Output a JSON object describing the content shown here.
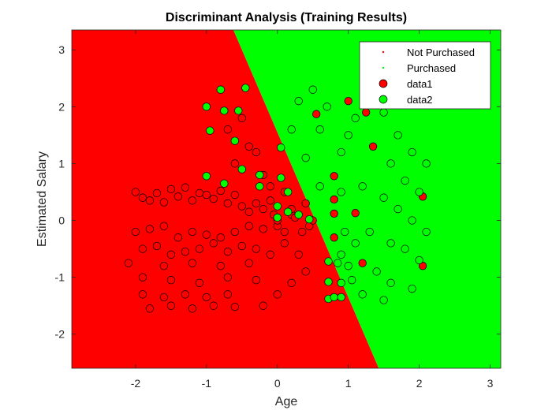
{
  "chart_data": {
    "type": "scatter",
    "title": "Discriminant Analysis (Training Results)",
    "xlabel": "Age",
    "ylabel": "Estimated Salary",
    "xlim": [
      -2.9,
      3.15
    ],
    "ylim": [
      -2.6,
      3.35
    ],
    "xticks": [
      -2,
      -1,
      0,
      1,
      2,
      3
    ],
    "xtick_labels": [
      "-2",
      "-1",
      "0",
      "1",
      "2",
      "3"
    ],
    "yticks": [
      -2,
      -1,
      0,
      1,
      2,
      3
    ],
    "ytick_labels": [
      "-2",
      "-1",
      "0",
      "1",
      "2",
      "3"
    ],
    "grid": false,
    "legend_placement": "top-right",
    "regions": {
      "boundary_top": {
        "x": -0.62,
        "y": 3.35
      },
      "boundary_bottom": {
        "x": 1.43,
        "y": -2.6
      },
      "left_color": "#ff0000",
      "right_color": "#00ff00",
      "left_label": "Not Purchased",
      "right_label": "Purchased"
    },
    "legend": [
      {
        "label": "Not Purchased",
        "marker": "dot",
        "color": "#ff0000"
      },
      {
        "label": "Purchased",
        "marker": "dot",
        "color": "#00ff00"
      },
      {
        "label": "data1",
        "marker": "circle",
        "color": "#ff0000"
      },
      {
        "label": "data2",
        "marker": "circle",
        "color": "#00ff00"
      }
    ],
    "series": [
      {
        "name": "data1",
        "color": "#ff0000",
        "points": [
          [
            -2.0,
            0.5
          ],
          [
            -1.9,
            0.4
          ],
          [
            -1.8,
            0.35
          ],
          [
            -1.7,
            0.48
          ],
          [
            -1.6,
            0.32
          ],
          [
            -1.5,
            0.55
          ],
          [
            -1.4,
            0.42
          ],
          [
            -1.3,
            0.58
          ],
          [
            -1.2,
            0.35
          ],
          [
            -1.1,
            0.48
          ],
          [
            -1.0,
            0.45
          ],
          [
            -0.9,
            0.38
          ],
          [
            -0.8,
            0.52
          ],
          [
            -0.7,
            0.3
          ],
          [
            -0.6,
            0.45
          ],
          [
            -0.5,
            0.25
          ],
          [
            -0.4,
            0.15
          ],
          [
            -0.3,
            0.3
          ],
          [
            -0.2,
            0.2
          ],
          [
            -0.1,
            0.35
          ],
          [
            -2.0,
            -0.2
          ],
          [
            -1.8,
            -0.15
          ],
          [
            -1.6,
            -0.1
          ],
          [
            -1.4,
            -0.3
          ],
          [
            -1.2,
            -0.2
          ],
          [
            -1.0,
            -0.25
          ],
          [
            -0.8,
            -0.3
          ],
          [
            -0.6,
            -0.2
          ],
          [
            -0.4,
            -0.1
          ],
          [
            -0.2,
            -0.15
          ],
          [
            -1.9,
            -0.5
          ],
          [
            -1.7,
            -0.45
          ],
          [
            -1.5,
            -0.6
          ],
          [
            -1.3,
            -0.55
          ],
          [
            -1.1,
            -0.5
          ],
          [
            -0.9,
            -0.4
          ],
          [
            -0.7,
            -0.55
          ],
          [
            -0.5,
            -0.45
          ],
          [
            -0.3,
            -0.5
          ],
          [
            -0.1,
            -0.6
          ],
          [
            -2.1,
            -0.75
          ],
          [
            -1.6,
            -0.8
          ],
          [
            -1.2,
            -0.75
          ],
          [
            -0.8,
            -0.8
          ],
          [
            -0.4,
            -0.75
          ],
          [
            -1.9,
            -1.0
          ],
          [
            -1.5,
            -1.05
          ],
          [
            -1.1,
            -1.1
          ],
          [
            -0.7,
            -1.0
          ],
          [
            -0.3,
            -1.05
          ],
          [
            -1.9,
            -1.3
          ],
          [
            -1.6,
            -1.35
          ],
          [
            -1.3,
            -1.3
          ],
          [
            -1.0,
            -1.35
          ],
          [
            -0.7,
            -1.3
          ],
          [
            -1.8,
            -1.55
          ],
          [
            -1.5,
            -1.5
          ],
          [
            -1.2,
            -1.55
          ],
          [
            -0.9,
            -1.5
          ],
          [
            -0.6,
            -1.52
          ],
          [
            -0.2,
            -1.5
          ],
          [
            0.0,
            -1.3
          ],
          [
            0.2,
            -1.1
          ],
          [
            0.4,
            -0.9
          ],
          [
            0.3,
            -0.6
          ],
          [
            0.1,
            -0.4
          ],
          [
            0.0,
            -0.1
          ],
          [
            0.2,
            0.1
          ],
          [
            0.35,
            -0.2
          ],
          [
            0.45,
            -0.1
          ],
          [
            -0.6,
            1.0
          ],
          [
            -0.4,
            1.3
          ],
          [
            -0.7,
            1.6
          ],
          [
            -0.5,
            1.8
          ],
          [
            -0.3,
            1.2
          ],
          [
            -0.2,
            0.8
          ],
          [
            -0.1,
            0.6
          ],
          [
            0.1,
            0.5
          ],
          [
            0.2,
            0.2
          ],
          [
            0.4,
            0.3
          ],
          [
            0.0,
            0.0
          ],
          [
            -0.05,
            0.1
          ],
          [
            0.1,
            -0.2
          ],
          [
            0.25,
            0.05
          ],
          [
            0.5,
            0.0
          ],
          [
            1.0,
            2.1
          ],
          [
            1.25,
            1.9
          ],
          [
            0.55,
            1.87
          ],
          [
            1.35,
            1.3
          ],
          [
            0.8,
            0.78
          ],
          [
            0.8,
            0.37
          ],
          [
            0.8,
            0.12
          ],
          [
            1.1,
            0.13
          ],
          [
            0.8,
            -0.3
          ],
          [
            1.2,
            -0.75
          ],
          [
            2.05,
            0.42
          ],
          [
            2.05,
            -0.8
          ]
        ]
      },
      {
        "name": "data2",
        "color": "#00ff00",
        "points": [
          [
            -1.0,
            2.0
          ],
          [
            -0.8,
            2.3
          ],
          [
            -0.45,
            2.33
          ],
          [
            -0.75,
            1.93
          ],
          [
            -0.55,
            1.93
          ],
          [
            -0.95,
            1.58
          ],
          [
            -0.6,
            1.4
          ],
          [
            -0.5,
            0.9
          ],
          [
            -1.0,
            0.78
          ],
          [
            -0.75,
            0.65
          ],
          [
            -0.25,
            0.8
          ],
          [
            -0.25,
            0.6
          ],
          [
            0.05,
            0.75
          ],
          [
            0.05,
            1.28
          ],
          [
            0.15,
            0.5
          ],
          [
            0.0,
            0.25
          ],
          [
            0.0,
            0.05
          ],
          [
            0.15,
            0.15
          ],
          [
            0.3,
            0.1
          ],
          [
            0.45,
            0.02
          ],
          [
            0.72,
            -0.72
          ],
          [
            0.72,
            -1.08
          ],
          [
            0.72,
            -1.38
          ],
          [
            0.8,
            -1.35
          ],
          [
            0.9,
            -1.35
          ],
          [
            0.9,
            -1.1
          ],
          [
            0.85,
            -0.75
          ],
          [
            0.9,
            -0.6
          ],
          [
            1.0,
            -0.8
          ],
          [
            1.05,
            -1.05
          ],
          [
            1.0,
            1.5
          ],
          [
            1.1,
            1.8
          ],
          [
            1.3,
            2.1
          ],
          [
            1.5,
            1.9
          ],
          [
            1.7,
            1.5
          ],
          [
            1.9,
            1.2
          ],
          [
            2.1,
            1.0
          ],
          [
            1.6,
            1.0
          ],
          [
            1.8,
            0.7
          ],
          [
            2.0,
            0.5
          ],
          [
            1.2,
            0.6
          ],
          [
            1.5,
            0.4
          ],
          [
            1.7,
            0.2
          ],
          [
            1.9,
            0.0
          ],
          [
            2.1,
            -0.2
          ],
          [
            1.3,
            -0.2
          ],
          [
            1.6,
            -0.4
          ],
          [
            1.8,
            -0.5
          ],
          [
            2.0,
            -0.7
          ],
          [
            1.4,
            -0.9
          ],
          [
            1.6,
            -1.1
          ],
          [
            1.9,
            -1.2
          ],
          [
            1.2,
            -1.3
          ],
          [
            1.5,
            -1.4
          ],
          [
            0.6,
            1.6
          ],
          [
            0.7,
            2.0
          ],
          [
            0.5,
            2.3
          ],
          [
            0.3,
            2.1
          ],
          [
            0.2,
            1.6
          ],
          [
            0.4,
            1.1
          ],
          [
            0.9,
            1.2
          ],
          [
            0.9,
            0.5
          ],
          [
            0.6,
            0.6
          ],
          [
            0.95,
            -0.2
          ],
          [
            1.1,
            -0.4
          ]
        ]
      }
    ]
  }
}
